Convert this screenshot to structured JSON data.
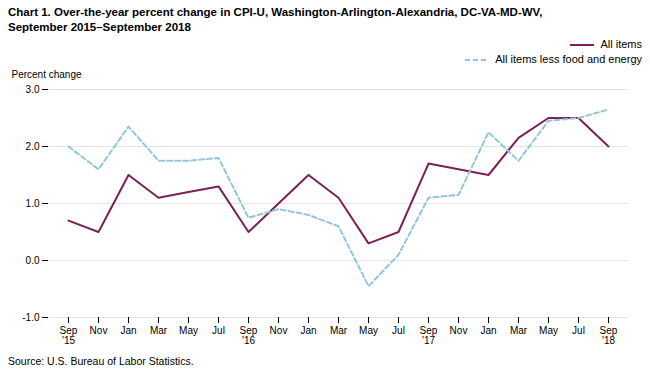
{
  "chart_data": {
    "type": "line",
    "title": "Chart 1. Over-the-year percent change in CPI-U, Washington-Arlington-Alexandria, DC-VA-MD-WV,\nSeptember 2015–September 2018",
    "ylabel": "Percent change",
    "source": "Source: U.S. Bureau of Labor Statistics.",
    "categories": [
      "Sep\n'15",
      "Nov",
      "Jan",
      "Mar",
      "May",
      "Jul",
      "Sep\n'16",
      "Nov",
      "Jan",
      "Mar",
      "May",
      "Jul",
      "Sep\n'17",
      "Nov",
      "Jan",
      "Mar",
      "May",
      "Jul",
      "Sep\n'18"
    ],
    "series": [
      {
        "name": "All items",
        "color": "#7b2155",
        "line_style": "solid",
        "values": [
          0.7,
          0.5,
          1.5,
          1.1,
          1.2,
          1.3,
          0.5,
          1.0,
          1.5,
          1.1,
          0.3,
          0.5,
          1.7,
          1.6,
          1.5,
          2.15,
          2.5,
          2.5,
          2.0
        ]
      },
      {
        "name": "All items less food and energy",
        "color": "#92c5de",
        "line_style": "dashed",
        "values": [
          2.0,
          1.6,
          2.35,
          1.75,
          1.75,
          1.8,
          0.75,
          0.9,
          0.8,
          0.6,
          -0.45,
          0.1,
          1.1,
          1.15,
          2.25,
          1.75,
          2.45,
          2.5,
          2.65
        ]
      }
    ],
    "ylim": [
      -1.0,
      3.0
    ],
    "yticks": [
      {
        "value": -1.0,
        "label": "-1.0"
      },
      {
        "value": 0.0,
        "label": "0.0"
      },
      {
        "value": 1.0,
        "label": "1.0"
      },
      {
        "value": 2.0,
        "label": "2.0"
      },
      {
        "value": 3.0,
        "label": "3.0"
      }
    ],
    "grid": true,
    "legend": "upper right"
  }
}
